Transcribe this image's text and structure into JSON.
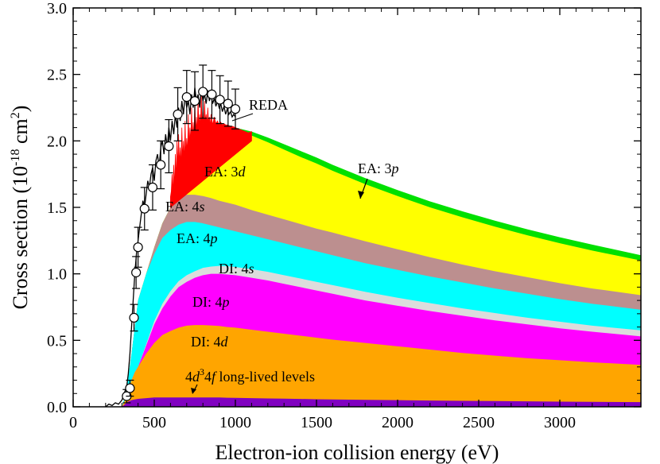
{
  "chart_data": {
    "type": "area",
    "title": "",
    "xlabel": "Electron-ion collision energy (eV)",
    "ylabel_parts": [
      "Cross section (10",
      "-18",
      " cm",
      "2",
      ")"
    ],
    "xlim": [
      0,
      3500
    ],
    "ylim": [
      0,
      3.0
    ],
    "x_ticks": [
      0,
      500,
      1000,
      1500,
      2000,
      2500,
      3000
    ],
    "x_tick_labels": [
      "0",
      "500",
      "1000",
      "1500",
      "2000",
      "2500",
      "3000"
    ],
    "y_ticks": [
      0,
      0.5,
      1.0,
      1.5,
      2.0,
      2.5,
      3.0
    ],
    "y_tick_labels": [
      "0.0",
      "0.5",
      "1.0",
      "1.5",
      "2.0",
      "2.5",
      "3.0"
    ],
    "stacked_cumulative": {
      "x": [
        300,
        320,
        340,
        360,
        380,
        400,
        450,
        500,
        550,
        600,
        650,
        700,
        750,
        800,
        850,
        900,
        950,
        1000,
        1100,
        1200,
        1300,
        1400,
        1500,
        1600,
        1800,
        2000,
        2200,
        2400,
        2600,
        2800,
        3000,
        3200,
        3500
      ],
      "series": [
        {
          "name": "4d³4f long-lived levels",
          "color": "#8000c0",
          "values": [
            0.0,
            0.02,
            0.04,
            0.05,
            0.055,
            0.06,
            0.065,
            0.07,
            0.07,
            0.07,
            0.07,
            0.07,
            0.07,
            0.07,
            0.07,
            0.07,
            0.068,
            0.067,
            0.065,
            0.063,
            0.061,
            0.059,
            0.057,
            0.055,
            0.052,
            0.05,
            0.047,
            0.045,
            0.043,
            0.041,
            0.039,
            0.037,
            0.035
          ]
        },
        {
          "name": "DI: 4d",
          "color": "#ffa500",
          "values": [
            0.0,
            0.05,
            0.12,
            0.2,
            0.26,
            0.3,
            0.4,
            0.48,
            0.54,
            0.57,
            0.595,
            0.61,
            0.615,
            0.615,
            0.612,
            0.608,
            0.6,
            0.595,
            0.58,
            0.565,
            0.55,
            0.535,
            0.52,
            0.505,
            0.48,
            0.455,
            0.43,
            0.405,
            0.385,
            0.365,
            0.35,
            0.335,
            0.315
          ]
        },
        {
          "name": "DI: 4p",
          "color": "#ff00ff",
          "values": [
            0.0,
            0.05,
            0.12,
            0.2,
            0.26,
            0.3,
            0.46,
            0.62,
            0.74,
            0.83,
            0.9,
            0.94,
            0.97,
            0.99,
            1.0,
            1.0,
            0.995,
            0.99,
            0.97,
            0.95,
            0.925,
            0.9,
            0.875,
            0.85,
            0.8,
            0.76,
            0.72,
            0.685,
            0.65,
            0.62,
            0.59,
            0.565,
            0.53
          ]
        },
        {
          "name": "DI: 4s",
          "color": "#dcdcdc",
          "values": [
            0.0,
            0.05,
            0.12,
            0.2,
            0.26,
            0.3,
            0.47,
            0.645,
            0.775,
            0.87,
            0.945,
            0.99,
            1.02,
            1.045,
            1.055,
            1.06,
            1.058,
            1.052,
            1.035,
            1.015,
            0.99,
            0.965,
            0.94,
            0.915,
            0.865,
            0.82,
            0.78,
            0.74,
            0.705,
            0.67,
            0.64,
            0.61,
            0.575
          ]
        },
        {
          "name": "EA: 4p",
          "color": "#00ffff",
          "values": [
            0.0,
            0.08,
            0.22,
            0.4,
            0.6,
            0.8,
            1.0,
            1.15,
            1.27,
            1.33,
            1.37,
            1.39,
            1.39,
            1.38,
            1.365,
            1.35,
            1.335,
            1.32,
            1.29,
            1.26,
            1.23,
            1.2,
            1.17,
            1.14,
            1.08,
            1.03,
            0.98,
            0.935,
            0.89,
            0.85,
            0.81,
            0.775,
            0.73
          ]
        },
        {
          "name": "EA: 4s",
          "color": "#bc8f8f",
          "values": [
            0.0,
            0.08,
            0.22,
            0.4,
            0.6,
            0.8,
            1.0,
            1.2,
            1.38,
            1.5,
            1.57,
            1.595,
            1.595,
            1.585,
            1.57,
            1.55,
            1.535,
            1.52,
            1.48,
            1.445,
            1.41,
            1.375,
            1.34,
            1.31,
            1.245,
            1.185,
            1.125,
            1.07,
            1.02,
            0.975,
            0.93,
            0.89,
            0.84
          ]
        },
        {
          "name": "EA: 3d",
          "color": "#ffff00",
          "values": [
            0.0,
            0.08,
            0.22,
            0.4,
            0.6,
            0.8,
            1.0,
            1.2,
            1.38,
            1.5,
            1.6,
            1.75,
            1.88,
            1.98,
            2.05,
            2.08,
            2.09,
            2.08,
            2.04,
            1.99,
            1.935,
            1.88,
            1.83,
            1.775,
            1.675,
            1.585,
            1.5,
            1.425,
            1.355,
            1.29,
            1.23,
            1.175,
            1.1
          ]
        },
        {
          "name": "EA: 3p",
          "color": "#00e000",
          "values": [
            0.0,
            0.08,
            0.22,
            0.4,
            0.6,
            0.8,
            1.0,
            1.2,
            1.38,
            1.5,
            1.6,
            1.75,
            1.88,
            1.98,
            2.05,
            2.09,
            2.1,
            2.1,
            2.07,
            2.025,
            1.975,
            1.925,
            1.875,
            1.82,
            1.72,
            1.63,
            1.545,
            1.47,
            1.4,
            1.335,
            1.275,
            1.22,
            1.14
          ]
        }
      ]
    },
    "red_overlay": {
      "name": "resonant excitation (jagged)",
      "color": "#ff0000",
      "x": [
        600,
        605,
        610,
        615,
        620,
        625,
        630,
        635,
        640,
        645,
        650,
        655,
        660,
        665,
        670,
        675,
        680,
        685,
        690,
        695,
        700,
        705,
        710,
        715,
        720,
        725,
        730,
        735,
        740,
        745,
        750,
        755,
        760,
        765,
        770,
        775,
        780,
        785,
        790,
        795,
        800,
        805,
        810,
        815,
        820,
        825,
        830,
        835,
        840,
        845,
        850,
        860,
        870,
        880,
        890,
        900,
        910,
        920,
        930,
        940,
        950,
        960,
        970,
        980,
        990,
        1000,
        1020,
        1040,
        1060,
        1080,
        1100
      ],
      "values": [
        1.58,
        1.62,
        1.75,
        1.6,
        1.82,
        1.64,
        1.9,
        1.7,
        2.0,
        1.78,
        2.05,
        1.82,
        1.95,
        1.8,
        2.1,
        1.86,
        2.0,
        1.84,
        2.15,
        1.88,
        2.02,
        1.9,
        2.2,
        1.95,
        2.1,
        1.98,
        2.25,
        2.0,
        2.14,
        2.02,
        2.3,
        2.05,
        2.18,
        2.06,
        2.32,
        2.1,
        2.2,
        2.09,
        2.35,
        2.12,
        2.22,
        2.1,
        2.3,
        2.14,
        2.2,
        2.12,
        2.25,
        2.13,
        2.18,
        2.11,
        2.2,
        2.12,
        2.18,
        2.13,
        2.15,
        2.12,
        2.14,
        2.12,
        2.13,
        2.12,
        2.12,
        2.115,
        2.11,
        2.11,
        2.105,
        2.1,
        2.09,
        2.08,
        2.07,
        2.06,
        2.07
      ]
    },
    "measured_line": {
      "name": "experiment (fine data)",
      "color": "#000000",
      "x": [
        200,
        220,
        240,
        260,
        280,
        300,
        310,
        320,
        330,
        340,
        350,
        360,
        370,
        380,
        390,
        400,
        410,
        420,
        430,
        440,
        450,
        460,
        470,
        480,
        490,
        500,
        510,
        520,
        530,
        540,
        550,
        560,
        570,
        580,
        590,
        600,
        610,
        620,
        630,
        640,
        650,
        660,
        670,
        680,
        690,
        700,
        710,
        720,
        730,
        740,
        750,
        760,
        770,
        780,
        790,
        800,
        810,
        820,
        830,
        840,
        850,
        860,
        870,
        880,
        890,
        900,
        910,
        920,
        930,
        940,
        950,
        960,
        970,
        980,
        990,
        1000
      ],
      "values": [
        0.0,
        0.02,
        0.01,
        0.03,
        0.02,
        0.05,
        0.08,
        0.12,
        0.15,
        0.25,
        0.4,
        0.6,
        0.8,
        1.0,
        1.15,
        1.25,
        1.35,
        1.45,
        1.55,
        1.5,
        1.6,
        1.7,
        1.65,
        1.75,
        1.8,
        1.7,
        1.85,
        1.9,
        1.8,
        1.95,
        2.0,
        1.9,
        2.05,
        1.95,
        2.1,
        2.0,
        2.15,
        2.05,
        2.2,
        2.1,
        2.25,
        2.15,
        2.3,
        2.2,
        2.35,
        2.25,
        2.3,
        2.2,
        2.35,
        2.25,
        2.4,
        2.3,
        2.35,
        2.25,
        2.4,
        2.3,
        2.35,
        2.28,
        2.38,
        2.3,
        2.35,
        2.28,
        2.32,
        2.26,
        2.3,
        2.25,
        2.28,
        2.22,
        2.26,
        2.2,
        2.24,
        2.2,
        2.22,
        2.18,
        2.2,
        2.18
      ]
    },
    "points": {
      "name": "REDA",
      "x": [
        330,
        350,
        375,
        388,
        400,
        440,
        490,
        540,
        590,
        645,
        700,
        750,
        800,
        855,
        905,
        955,
        1000
      ],
      "values": [
        0.08,
        0.14,
        0.67,
        1.01,
        1.2,
        1.49,
        1.65,
        1.82,
        1.96,
        2.2,
        2.33,
        2.3,
        2.37,
        2.35,
        2.31,
        2.28,
        2.24
      ],
      "errors": [
        0.05,
        0.06,
        0.1,
        0.12,
        0.15,
        0.16,
        0.17,
        0.18,
        0.2,
        0.2,
        0.2,
        0.22,
        0.2,
        0.18,
        0.18,
        0.17,
        0.15
      ]
    },
    "annotations": [
      {
        "key": "reda",
        "text": "REDA"
      },
      {
        "key": "ea3d",
        "text": "EA: 3",
        "italic": "d"
      },
      {
        "key": "ea3p",
        "text": "EA: 3",
        "italic": "p"
      },
      {
        "key": "ea4s",
        "text": "EA: 4",
        "italic": "s"
      },
      {
        "key": "ea4p",
        "text": "EA: 4",
        "italic": "p"
      },
      {
        "key": "di4s",
        "text": "DI: 4",
        "italic": "s"
      },
      {
        "key": "di4p",
        "text": "DI: 4",
        "italic": "p"
      },
      {
        "key": "di4d",
        "text": "DI: 4",
        "italic": "d"
      },
      {
        "key": "ll",
        "parts": [
          "4",
          "d",
          "3",
          "4",
          "f",
          " long-lived levels"
        ]
      }
    ]
  }
}
